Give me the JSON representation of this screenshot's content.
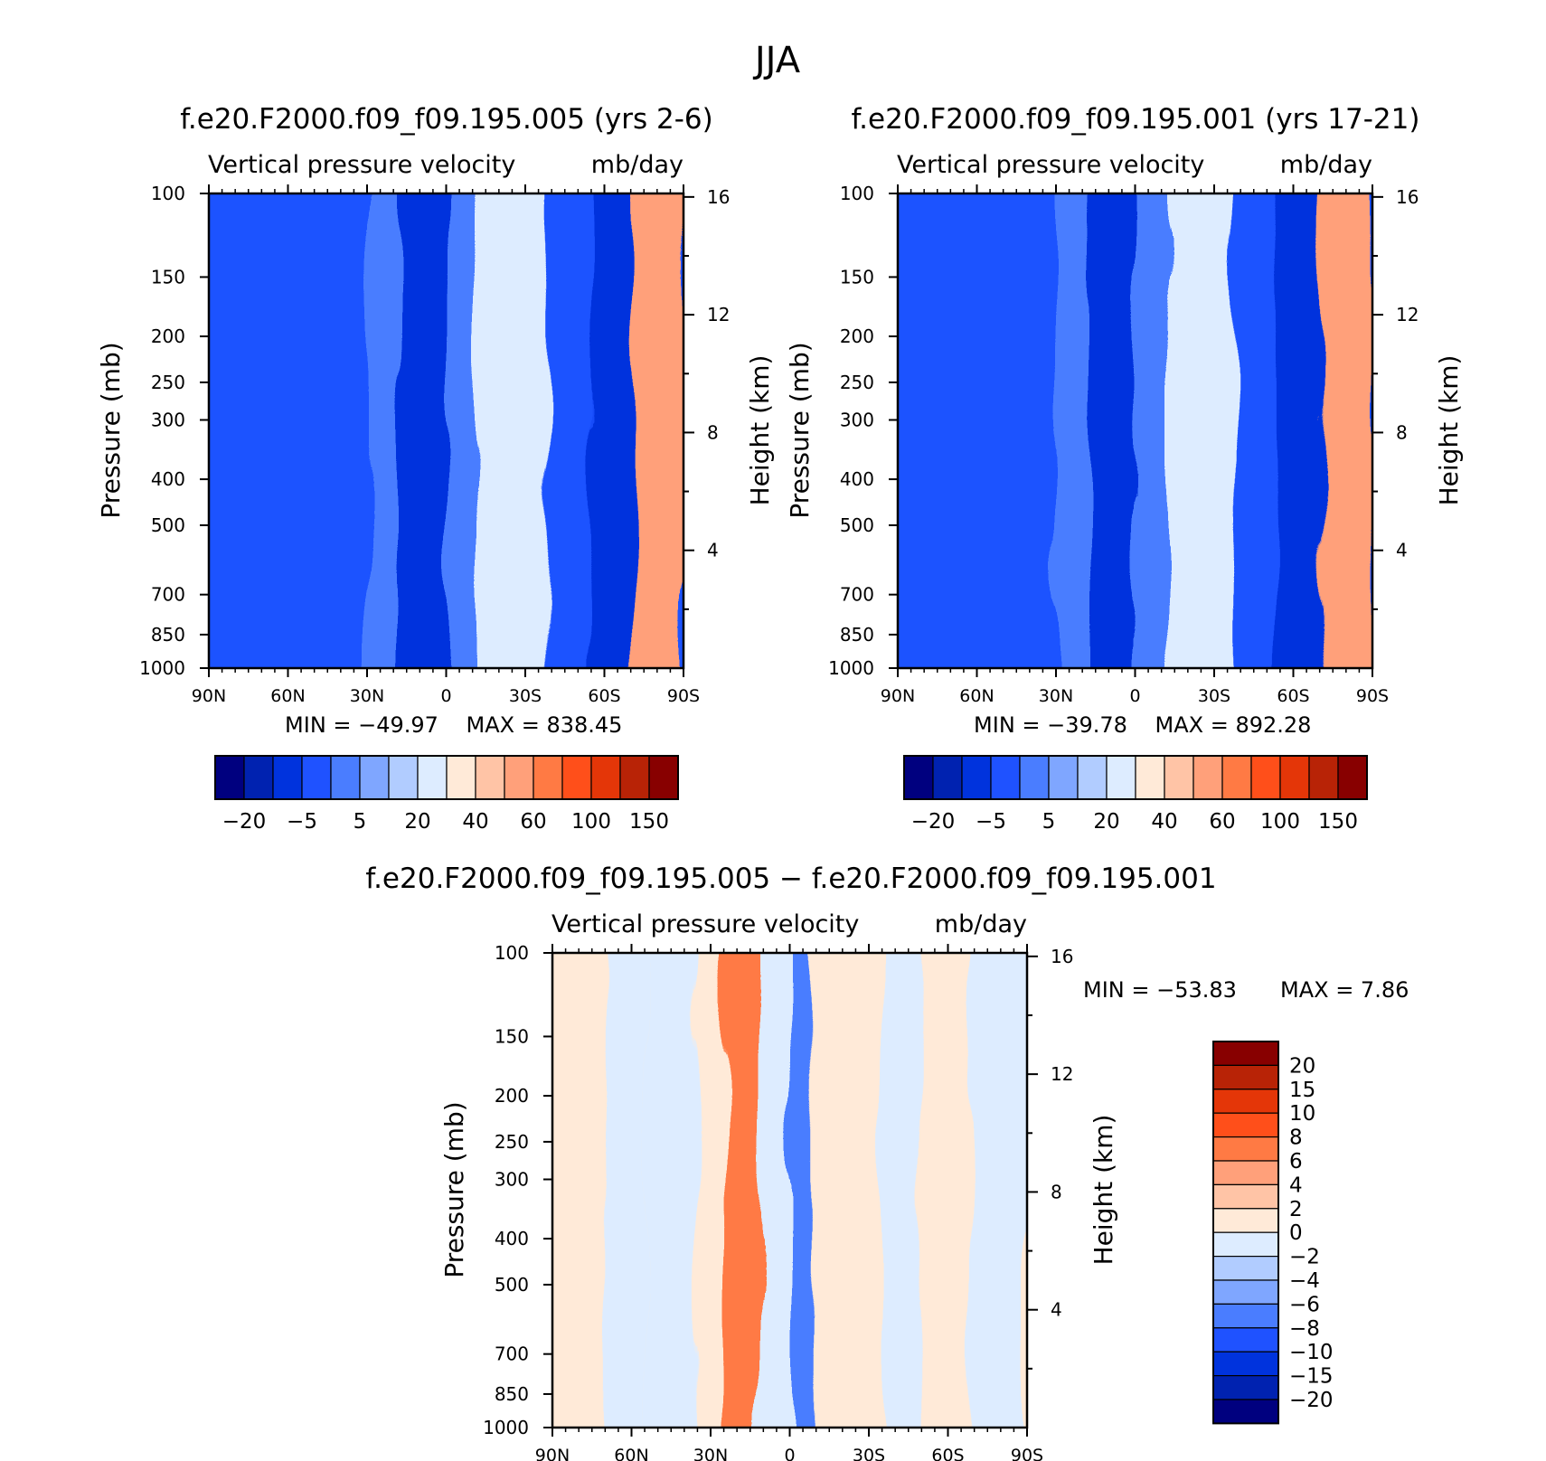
{
  "figure_title": "JJA",
  "colors": {
    "top_palette": [
      "#00007f",
      "#0022b0",
      "#0033dd",
      "#1f52ff",
      "#4a7dff",
      "#7fa6ff",
      "#b1ccff",
      "#ddecff",
      "#ffead8",
      "#ffc4a6",
      "#ffa07a",
      "#ff7a44",
      "#ff4f1a",
      "#e43608",
      "#b82306",
      "#880000"
    ],
    "diff_palette": [
      "#00007f",
      "#0022b0",
      "#0033dd",
      "#1f52ff",
      "#4a7dff",
      "#7fa6ff",
      "#b1ccff",
      "#ddecff",
      "#ffead8",
      "#ffc4a6",
      "#ffa07a",
      "#ff7a44",
      "#ff4f1a",
      "#e43608",
      "#b82306",
      "#880000"
    ]
  },
  "chart_data": [
    {
      "type": "heatmap",
      "title": "f.e20.F2000.f09_f09.195.005 (yrs 2-6)",
      "subtitle_left": "Vertical pressure velocity",
      "subtitle_right": "mb/day",
      "ylabel": "Pressure (mb)",
      "ylabel2": "Height (km)",
      "x_ticks": [
        "90N",
        "60N",
        "30N",
        "0",
        "30S",
        "60S",
        "90S"
      ],
      "y_ticks": [
        "100",
        "150",
        "200",
        "250",
        "300",
        "400",
        "500",
        "700",
        "850",
        "1000"
      ],
      "y2_ticks": [
        "16",
        "12",
        "8",
        "4"
      ],
      "min_label": "MIN = −49.97",
      "max_label": "MAX = 838.45",
      "min": -49.97,
      "max": 838.45,
      "colorbar_labels": [
        "−20",
        "−5",
        "5",
        "20",
        "40",
        "60",
        "100",
        "150"
      ],
      "field": [
        {
          "lat_min": 90,
          "lat_max": 60,
          "value": -8
        },
        {
          "lat_min": 60,
          "lat_max": 30,
          "value": -6
        },
        {
          "lat_min": 30,
          "lat_max": 18,
          "value": -4
        },
        {
          "lat_min": 18,
          "lat_max": 0,
          "value": -20
        },
        {
          "lat_min": 0,
          "lat_max": -12,
          "value": -4
        },
        {
          "lat_min": -12,
          "lat_max": -38,
          "value": 10
        },
        {
          "lat_min": -38,
          "lat_max": -55,
          "value": -6
        },
        {
          "lat_min": -55,
          "lat_max": -70,
          "value": -12
        },
        {
          "lat_min": -70,
          "lat_max": -90,
          "value": 40
        }
      ]
    },
    {
      "type": "heatmap",
      "title": "f.e20.F2000.f09_f09.195.001 (yrs 17-21)",
      "subtitle_left": "Vertical pressure velocity",
      "subtitle_right": "mb/day",
      "ylabel": "Pressure (mb)",
      "ylabel2": "Height (km)",
      "x_ticks": [
        "90N",
        "60N",
        "30N",
        "0",
        "30S",
        "60S",
        "90S"
      ],
      "y_ticks": [
        "100",
        "150",
        "200",
        "250",
        "300",
        "400",
        "500",
        "700",
        "850",
        "1000"
      ],
      "y2_ticks": [
        "16",
        "12",
        "8",
        "4"
      ],
      "min_label": "MIN = −39.78",
      "max_label": "MAX = 892.28",
      "min": -39.78,
      "max": 892.28,
      "colorbar_labels": [
        "−20",
        "−5",
        "5",
        "20",
        "40",
        "60",
        "100",
        "150"
      ],
      "field": [
        {
          "lat_min": 90,
          "lat_max": 60,
          "value": -8
        },
        {
          "lat_min": 60,
          "lat_max": 30,
          "value": -6
        },
        {
          "lat_min": 30,
          "lat_max": 18,
          "value": -4
        },
        {
          "lat_min": 18,
          "lat_max": 0,
          "value": -20
        },
        {
          "lat_min": 0,
          "lat_max": -12,
          "value": -4
        },
        {
          "lat_min": -12,
          "lat_max": -38,
          "value": 12
        },
        {
          "lat_min": -38,
          "lat_max": -55,
          "value": -6
        },
        {
          "lat_min": -55,
          "lat_max": -70,
          "value": -12
        },
        {
          "lat_min": -70,
          "lat_max": -90,
          "value": 40
        }
      ]
    },
    {
      "type": "heatmap",
      "title": "f.e20.F2000.f09_f09.195.005 − f.e20.F2000.f09_f09.195.001",
      "subtitle_left": "Vertical pressure velocity",
      "subtitle_right": "mb/day",
      "ylabel": "Pressure (mb)",
      "ylabel2": "Height (km)",
      "x_ticks": [
        "90N",
        "60N",
        "30N",
        "0",
        "30S",
        "60S",
        "90S"
      ],
      "y_ticks": [
        "100",
        "150",
        "200",
        "250",
        "300",
        "400",
        "500",
        "700",
        "850",
        "1000"
      ],
      "y2_ticks": [
        "16",
        "12",
        "8",
        "4"
      ],
      "min_label": "MIN = −53.83",
      "max_label": "MAX =    7.86",
      "min": -53.83,
      "max": 7.86,
      "colorbar_labels": [
        "20",
        "15",
        "10",
        "8",
        "6",
        "4",
        "2",
        "0",
        "−2",
        "−4",
        "−6",
        "−8",
        "−10",
        "−15",
        "−20"
      ],
      "field": [
        {
          "lat_min": 90,
          "lat_max": 70,
          "value": 1
        },
        {
          "lat_min": 70,
          "lat_max": 55,
          "value": -1
        },
        {
          "lat_min": 55,
          "lat_max": 35,
          "value": -1
        },
        {
          "lat_min": 35,
          "lat_max": 25,
          "value": 1
        },
        {
          "lat_min": 25,
          "lat_max": 12,
          "value": 6
        },
        {
          "lat_min": 12,
          "lat_max": 0,
          "value": -1
        },
        {
          "lat_min": 0,
          "lat_max": -8,
          "value": -8
        },
        {
          "lat_min": -8,
          "lat_max": -35,
          "value": 1
        },
        {
          "lat_min": -35,
          "lat_max": -50,
          "value": -1
        },
        {
          "lat_min": -50,
          "lat_max": -68,
          "value": 1
        },
        {
          "lat_min": -68,
          "lat_max": -90,
          "value": -1
        }
      ]
    }
  ]
}
